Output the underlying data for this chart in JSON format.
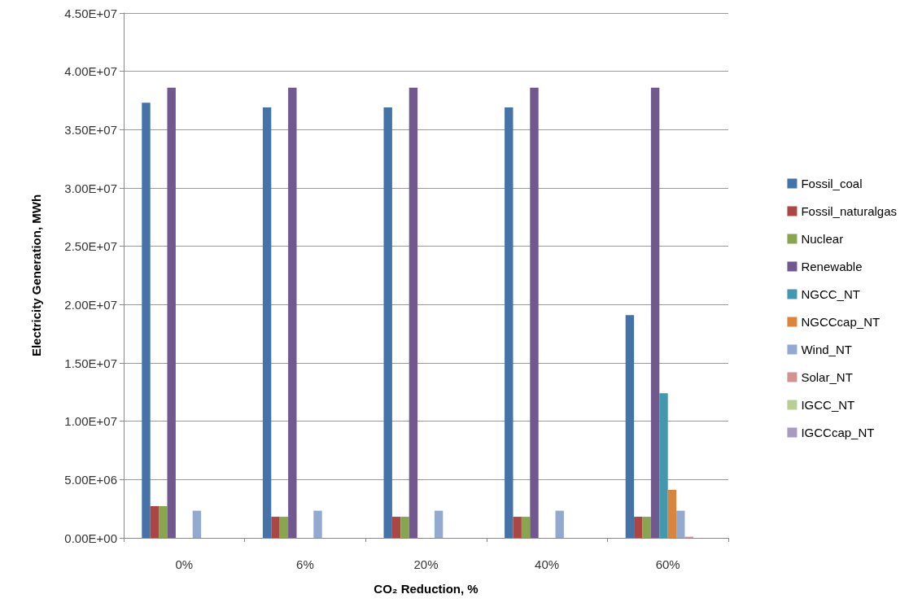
{
  "chart_data": {
    "type": "bar",
    "xlabel": "CO₂ Reduction, %",
    "ylabel": "Electricity Generation, MWh",
    "categories": [
      "0%",
      "6%",
      "20%",
      "40%",
      "60%"
    ],
    "series": [
      {
        "name": "Fossil_coal",
        "color": "#4572a7",
        "values": [
          37300000,
          36900000,
          36900000,
          36900000,
          19100000
        ]
      },
      {
        "name": "Fossil_naturalgas",
        "color": "#aa4643",
        "values": [
          2720000,
          1810000,
          1810000,
          1810000,
          1810000
        ]
      },
      {
        "name": "Nuclear",
        "color": "#89a54e",
        "values": [
          2720000,
          1810000,
          1810000,
          1810000,
          1810000
        ]
      },
      {
        "name": "Renewable",
        "color": "#71588f",
        "values": [
          38600000,
          38600000,
          38600000,
          38600000,
          38600000
        ]
      },
      {
        "name": "NGCC_NT",
        "color": "#4198af",
        "values": [
          0,
          0,
          0,
          0,
          12400000
        ]
      },
      {
        "name": "NGCCcap_NT",
        "color": "#db843d",
        "values": [
          0,
          0,
          0,
          0,
          4120000
        ]
      },
      {
        "name": "Wind_NT",
        "color": "#93a9cf",
        "values": [
          2330000,
          2330000,
          2330000,
          2330000,
          2330000
        ]
      },
      {
        "name": "Solar_NT",
        "color": "#d19392",
        "values": [
          0,
          0,
          0,
          0,
          100000
        ]
      },
      {
        "name": "IGCC_NT",
        "color": "#b9cd96",
        "values": [
          0,
          0,
          0,
          0,
          0
        ]
      },
      {
        "name": "IGCCcap_NT",
        "color": "#a99bbd",
        "values": [
          0,
          0,
          0,
          0,
          0
        ]
      }
    ],
    "ylim": [
      0,
      45000000
    ],
    "yticks": [
      {
        "value": 0,
        "label": "0.00E+00"
      },
      {
        "value": 5000000,
        "label": "5.00E+06"
      },
      {
        "value": 10000000,
        "label": "1.00E+07"
      },
      {
        "value": 15000000,
        "label": "1.50E+07"
      },
      {
        "value": 20000000,
        "label": "2.00E+07"
      },
      {
        "value": 25000000,
        "label": "2.50E+07"
      },
      {
        "value": 30000000,
        "label": "3.00E+07"
      },
      {
        "value": 35000000,
        "label": "3.50E+07"
      },
      {
        "value": 40000000,
        "label": "4.00E+07"
      },
      {
        "value": 45000000,
        "label": "4.50E+07"
      }
    ],
    "grid": "y",
    "legend": "right"
  }
}
